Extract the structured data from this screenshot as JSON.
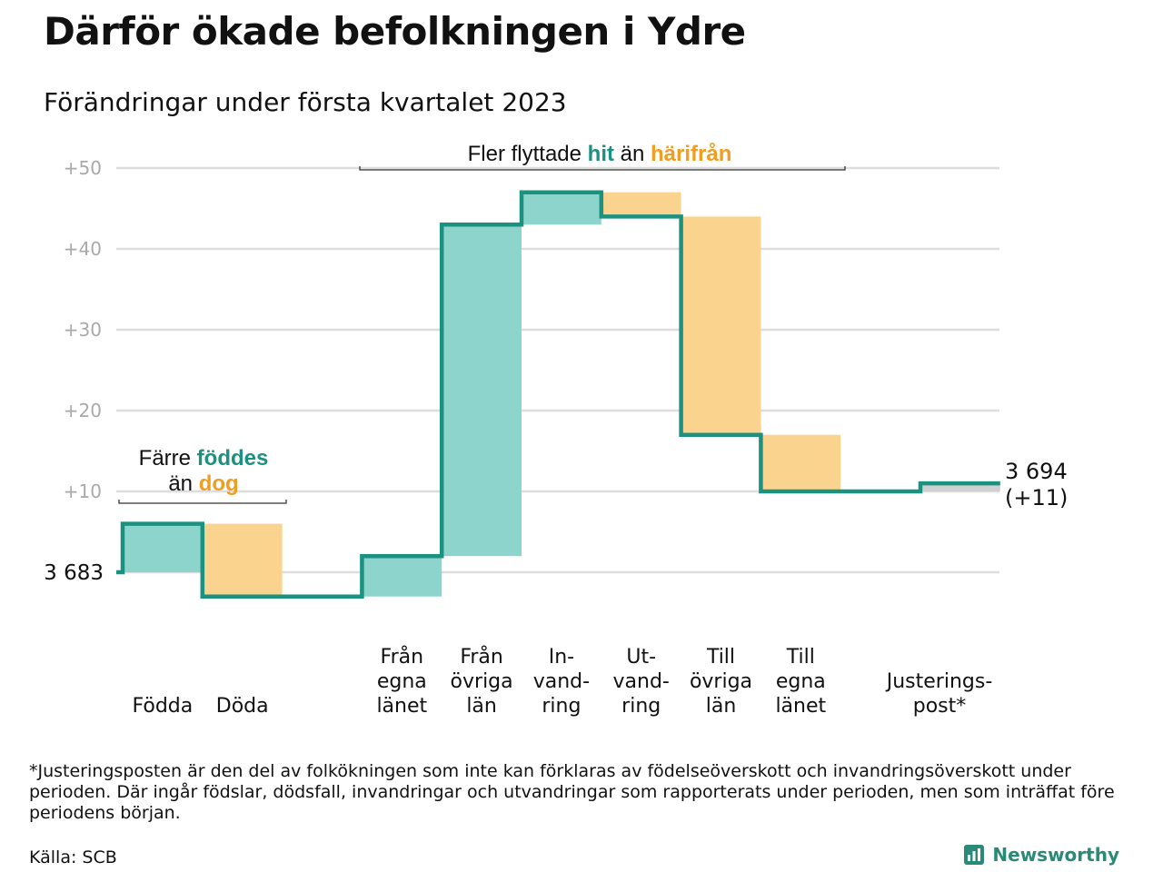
{
  "header": {
    "title": "Därför ökade befolkningen i Ydre",
    "subtitle": "Förändringar under första kvartalet 2023"
  },
  "colors": {
    "positive": "#8dd5cc",
    "negative": "#fad48e",
    "adjustment": "#d0d0d0",
    "line": "#1b9180",
    "teal_text": "#1b9180",
    "orange_text": "#f19d1f",
    "grid": "#dddddd",
    "tick_text": "#a9a9a9"
  },
  "annotations": {
    "top": {
      "prefix": "Fler flyttade ",
      "hl1": "hit",
      "mid": " än ",
      "hl2": "härifrån"
    },
    "left_line1": {
      "prefix": "Färre ",
      "hl": "föddes"
    },
    "left_line2": {
      "prefix": "än ",
      "hl": "dog"
    }
  },
  "chart_data": {
    "type": "waterfall",
    "title": "Därför ökade befolkningen i Ydre",
    "subtitle": "Förändringar under första kvartalet 2023",
    "start_value": 3683,
    "start_label": "3 683",
    "end_label_line1": "3 694",
    "end_label_line2": "(+11)",
    "yticks": [
      {
        "value": 10,
        "label": "+10"
      },
      {
        "value": 20,
        "label": "+20"
      },
      {
        "value": 30,
        "label": "+30"
      },
      {
        "value": 40,
        "label": "+40"
      },
      {
        "value": 50,
        "label": "+50"
      }
    ],
    "ylim": [
      -3,
      50
    ],
    "categories": [
      {
        "label": [
          "Födda"
        ],
        "change": 6,
        "kind": "positive"
      },
      {
        "label": [
          "Döda"
        ],
        "change": -9,
        "kind": "negative"
      },
      {
        "label": [],
        "change": 0,
        "kind": "gap"
      },
      {
        "label": [
          "Från",
          "egna",
          "länet"
        ],
        "change": 5,
        "kind": "positive"
      },
      {
        "label": [
          "Från",
          "övriga",
          "län"
        ],
        "change": 41,
        "kind": "positive"
      },
      {
        "label": [
          "In-",
          "vand-",
          "ring"
        ],
        "change": 4,
        "kind": "positive"
      },
      {
        "label": [
          "Ut-",
          "vand-",
          "ring"
        ],
        "change": -3,
        "kind": "negative"
      },
      {
        "label": [
          "Till",
          "övriga",
          "län"
        ],
        "change": -27,
        "kind": "negative"
      },
      {
        "label": [
          "Till",
          "egna",
          "länet"
        ],
        "change": -7,
        "kind": "negative"
      },
      {
        "label": [],
        "change": 0,
        "kind": "gap"
      },
      {
        "label": [
          "Justerings-",
          "post*"
        ],
        "change": 1,
        "kind": "adjustment"
      }
    ],
    "cumulative": [
      6,
      -3,
      -3,
      2,
      43,
      47,
      44,
      17,
      10,
      10,
      11
    ]
  },
  "footer": {
    "footnote": "*Justeringsposten är den del av folkökningen som inte kan förklaras av födelseöverskott och invandringsöverskott under perioden. Där ingår födslar, dödsfall, invandringar och utvandringar som rapporterats under perioden, men som inträffat före periodens början.",
    "source": "Källa: SCB",
    "brand": "Newsworthy"
  }
}
